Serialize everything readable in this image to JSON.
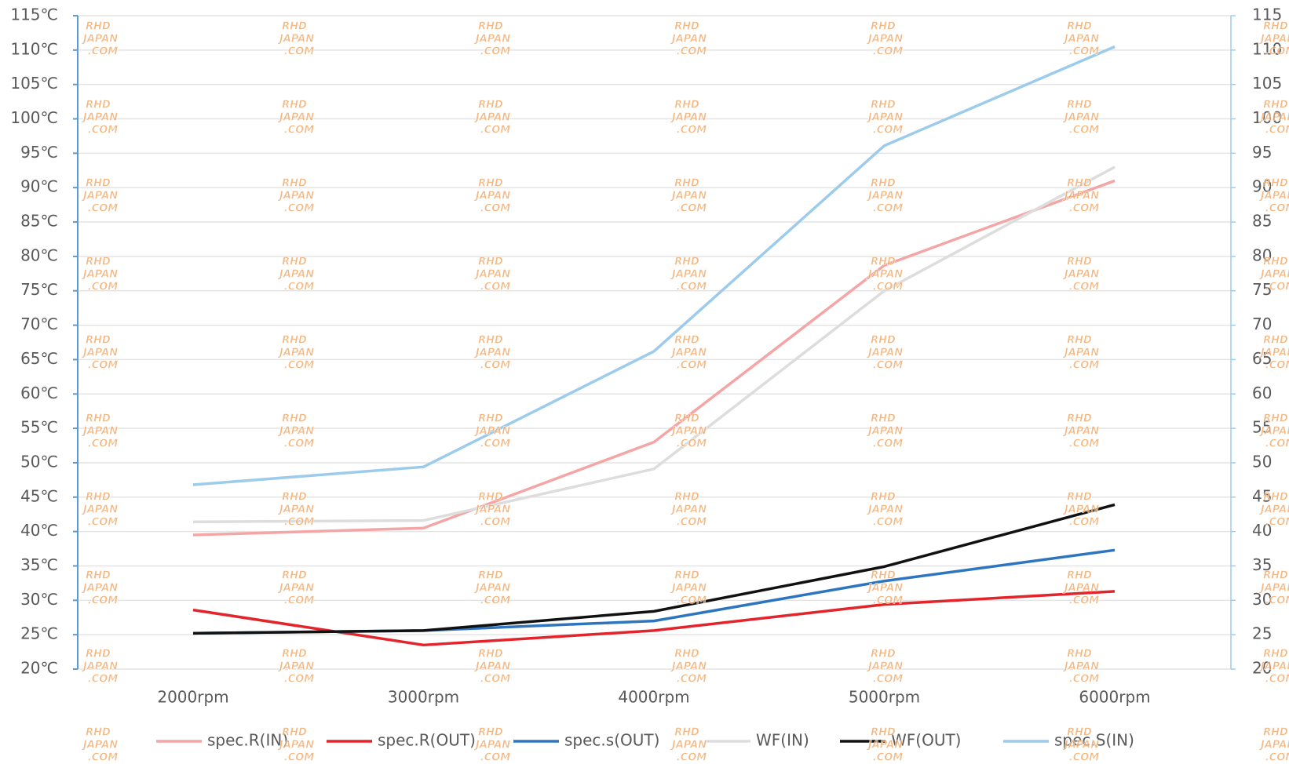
{
  "chart_data": {
    "type": "line",
    "categories": [
      "2000rpm",
      "3000rpm",
      "4000rpm",
      "5000rpm",
      "6000rpm"
    ],
    "series": [
      {
        "name": "spec.R(IN)",
        "color": "#f4a6a6",
        "values": [
          39.5,
          40.5,
          53,
          78.7,
          91
        ]
      },
      {
        "name": "spec.R(OUT)",
        "color": "#e3242b",
        "values": [
          28.6,
          23.5,
          25.6,
          29.4,
          31.3
        ]
      },
      {
        "name": "spec.s(OUT)",
        "color": "#2e75c0",
        "values": [
          25.2,
          25.6,
          27,
          32.8,
          37.3
        ]
      },
      {
        "name": "WF(IN)",
        "color": "#dddddd",
        "values": [
          41.4,
          41.6,
          49.1,
          75,
          93
        ]
      },
      {
        "name": "WF(OUT)",
        "color": "#111111",
        "values": [
          25.2,
          25.6,
          28.4,
          34.9,
          43.9
        ]
      },
      {
        "name": "spec.S(IN)",
        "color": "#9dcbec",
        "values": [
          46.8,
          49.4,
          66.2,
          96.1,
          110.5
        ]
      }
    ],
    "ylim": [
      20,
      115
    ],
    "yticks": [
      {
        "value": 20,
        "label": "20℃"
      },
      {
        "value": 25,
        "label": "25℃"
      },
      {
        "value": 30,
        "label": "30℃"
      },
      {
        "value": 35,
        "label": "35℃"
      },
      {
        "value": 40,
        "label": "40℃"
      },
      {
        "value": 45,
        "label": "45℃"
      },
      {
        "value": 50,
        "label": "50℃"
      },
      {
        "value": 55,
        "label": "55℃"
      },
      {
        "value": 60,
        "label": "60℃"
      },
      {
        "value": 65,
        "label": "65℃"
      },
      {
        "value": 70,
        "label": "70℃"
      },
      {
        "value": 75,
        "label": "75℃"
      },
      {
        "value": 80,
        "label": "80℃"
      },
      {
        "value": 85,
        "label": "85℃"
      },
      {
        "value": 90,
        "label": "90℃"
      },
      {
        "value": 95,
        "label": "95℃"
      },
      {
        "value": 100,
        "label": "100℃"
      },
      {
        "value": 105,
        "label": "105℃"
      },
      {
        "value": 110,
        "label": "110℃"
      },
      {
        "value": 115,
        "label": "115℃"
      }
    ],
    "y2lim": [
      20,
      115
    ],
    "y2ticks": [
      20,
      25,
      30,
      35,
      40,
      45,
      50,
      55,
      60,
      65,
      70,
      75,
      80,
      85,
      90,
      95,
      100,
      105,
      110,
      115
    ],
    "grid": true,
    "legend": "bottom",
    "watermark": [
      "RHD",
      "JAPAN",
      ".COM"
    ]
  }
}
